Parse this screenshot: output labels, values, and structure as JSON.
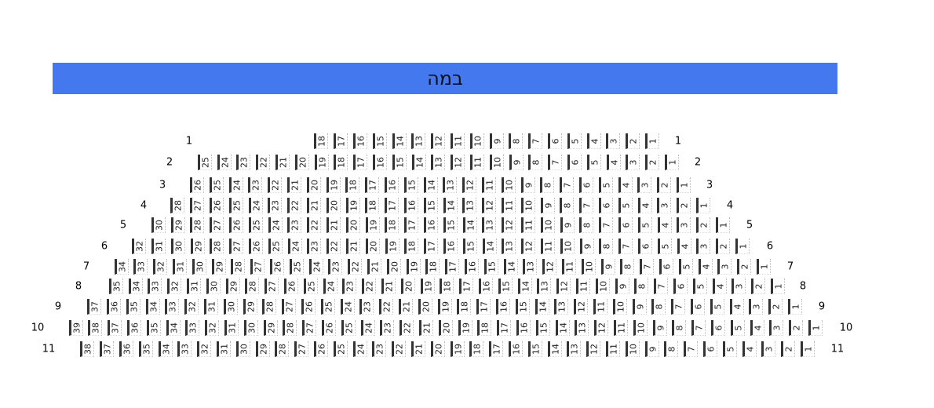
{
  "stage": {
    "label": "במה",
    "color": "#4478ee"
  },
  "rows": [
    {
      "label": "1",
      "seats": [
        "18",
        "17",
        "16",
        "15",
        "14",
        "13",
        "12",
        "11",
        "10",
        "9",
        "8",
        "7",
        "6",
        "5",
        "4",
        "3",
        "2",
        "1"
      ]
    },
    {
      "label": "2",
      "seats": [
        "25",
        "24",
        "23",
        "22",
        "21",
        "20",
        "19",
        "18",
        "17",
        "16",
        "15",
        "14",
        "13",
        "12",
        "11",
        "10",
        "9",
        "8",
        "7",
        "6",
        "5",
        "4",
        "3",
        "2",
        "1"
      ]
    },
    {
      "label": "3",
      "seats": [
        "26",
        "25",
        "24",
        "23",
        "22",
        "21",
        "20",
        "19",
        "18",
        "17",
        "16",
        "15",
        "14",
        "13",
        "12",
        "11",
        "10",
        "9",
        "8",
        "7",
        "6",
        "5",
        "4",
        "3",
        "2",
        "1"
      ]
    },
    {
      "label": "4",
      "seats": [
        "28",
        "27",
        "26",
        "25",
        "24",
        "23",
        "22",
        "21",
        "20",
        "19",
        "18",
        "17",
        "16",
        "15",
        "14",
        "13",
        "12",
        "11",
        "10",
        "9",
        "8",
        "7",
        "6",
        "5",
        "4",
        "3",
        "2",
        "1"
      ]
    },
    {
      "label": "5",
      "seats": [
        "30",
        "29",
        "28",
        "27",
        "26",
        "25",
        "24",
        "23",
        "22",
        "21",
        "20",
        "19",
        "18",
        "17",
        "16",
        "15",
        "14",
        "13",
        "12",
        "11",
        "10",
        "9",
        "8",
        "7",
        "6",
        "5",
        "4",
        "3",
        "2",
        "1"
      ]
    },
    {
      "label": "6",
      "seats": [
        "32",
        "31",
        "30",
        "29",
        "28",
        "27",
        "26",
        "25",
        "24",
        "23",
        "22",
        "21",
        "20",
        "19",
        "18",
        "17",
        "16",
        "15",
        "14",
        "13",
        "12",
        "11",
        "10",
        "9",
        "8",
        "7",
        "6",
        "5",
        "4",
        "3",
        "2",
        "1"
      ]
    },
    {
      "label": "7",
      "seats": [
        "34",
        "33",
        "32",
        "31",
        "30",
        "29",
        "28",
        "27",
        "26",
        "25",
        "24",
        "23",
        "22",
        "21",
        "20",
        "19",
        "18",
        "17",
        "16",
        "15",
        "14",
        "13",
        "12",
        "11",
        "10",
        "9",
        "8",
        "7",
        "6",
        "5",
        "4",
        "3",
        "2",
        "1"
      ]
    },
    {
      "label": "8",
      "seats": [
        "35",
        "34",
        "33",
        "32",
        "31",
        "30",
        "29",
        "28",
        "27",
        "26",
        "25",
        "24",
        "23",
        "22",
        "21",
        "20",
        "19",
        "18",
        "17",
        "16",
        "15",
        "14",
        "13",
        "12",
        "11",
        "10",
        "9",
        "8",
        "7",
        "6",
        "5",
        "4",
        "3",
        "2",
        "1"
      ]
    },
    {
      "label": "9",
      "seats": [
        "37",
        "36",
        "35",
        "34",
        "33",
        "32",
        "31",
        "30",
        "29",
        "28",
        "27",
        "26",
        "25",
        "24",
        "23",
        "22",
        "21",
        "20",
        "19",
        "18",
        "17",
        "16",
        "15",
        "14",
        "13",
        "12",
        "11",
        "10",
        "9",
        "8",
        "7",
        "6",
        "5",
        "4",
        "3",
        "2",
        "1"
      ]
    },
    {
      "label": "10",
      "seats": [
        "39",
        "38",
        "37",
        "36",
        "35",
        "34",
        "33",
        "32",
        "31",
        "30",
        "29",
        "28",
        "27",
        "26",
        "25",
        "24",
        "23",
        "22",
        "21",
        "20",
        "19",
        "18",
        "17",
        "16",
        "15",
        "14",
        "13",
        "12",
        "11",
        "10",
        "9",
        "8",
        "7",
        "6",
        "5",
        "4",
        "3",
        "2",
        "1"
      ]
    },
    {
      "label": "11",
      "seats": [
        "38",
        "37",
        "36",
        "35",
        "34",
        "33",
        "32",
        "31",
        "30",
        "29",
        "28",
        "27",
        "26",
        "25",
        "24",
        "23",
        "22",
        "21",
        "20",
        "19",
        "18",
        "17",
        "16",
        "15",
        "14",
        "13",
        "12",
        "11",
        "10",
        "9",
        "8",
        "7",
        "6",
        "5",
        "4",
        "3",
        "2",
        "1"
      ]
    }
  ]
}
